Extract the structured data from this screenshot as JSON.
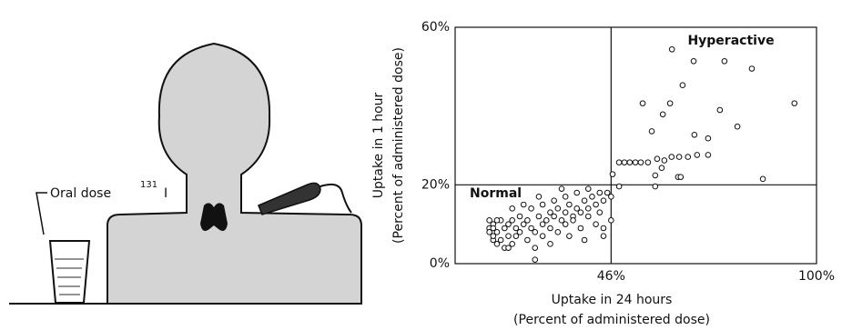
{
  "illustration": {
    "label": "Oral dose",
    "isotope_mass": "131",
    "isotope_symbol": "I"
  },
  "chart_data": {
    "type": "scatter",
    "xlabel": [
      "Uptake in 24 hours",
      "(Percent of administered dose)"
    ],
    "ylabel": [
      "Uptake in 1 hour",
      "(Percent of administered dose)"
    ],
    "annotations": [
      "Hyperactive",
      "Normal"
    ],
    "xlim": [
      5,
      100
    ],
    "ylim": [
      0,
      60
    ],
    "xticks": [
      {
        "value": 46,
        "label": "46%"
      },
      {
        "value": 100,
        "label": "100%"
      }
    ],
    "yticks": [
      {
        "value": 0,
        "label": "0%"
      },
      {
        "value": 20,
        "label": "20%"
      },
      {
        "value": 60,
        "label": "60%"
      }
    ],
    "x": [
      62,
      67.7,
      75.8,
      83,
      64.8,
      54.3,
      61.5,
      59.6,
      94.2,
      74.6,
      79.2,
      56.7,
      67.9,
      71.5,
      48.1,
      49.5,
      50.9,
      52.4,
      53.8,
      55.7,
      58.1,
      60,
      61.9,
      63.9,
      66.2,
      68.6,
      71.5,
      59.3,
      63.6,
      64.3,
      57.6,
      57.6,
      85.9,
      48.1,
      46.4,
      14,
      15,
      16,
      17,
      18,
      19,
      20,
      21,
      22,
      14,
      15,
      16,
      15,
      16,
      17,
      18,
      19,
      20,
      21,
      22,
      23,
      24,
      25,
      26,
      27,
      28,
      29,
      30,
      31,
      32,
      33,
      34,
      35,
      36,
      37,
      38,
      39,
      40,
      41,
      42,
      43,
      44,
      45,
      46,
      24,
      26,
      28,
      30,
      32,
      34,
      36,
      38,
      40,
      42,
      44,
      46,
      25,
      28,
      31,
      34,
      37,
      40,
      43,
      20,
      23,
      27,
      33,
      26,
      19,
      30,
      35,
      39,
      44,
      15,
      14
    ],
    "values": [
      54.4,
      51.4,
      51.4,
      49.5,
      45.3,
      40.7,
      40.7,
      37.9,
      40.7,
      39,
      34.8,
      33.6,
      32.7,
      31.8,
      25.7,
      25.7,
      25.7,
      25.7,
      25.7,
      25.7,
      26.6,
      26.2,
      27.1,
      27.1,
      27.1,
      27.6,
      27.6,
      24.3,
      22,
      22,
      22.4,
      19.6,
      21.5,
      19.6,
      22.7,
      9,
      10,
      8,
      11,
      9,
      10,
      11,
      9,
      12,
      8,
      6,
      5,
      7,
      11,
      6,
      4,
      7,
      5,
      7,
      8,
      10,
      11,
      9,
      8,
      12,
      10,
      11,
      13,
      12,
      14,
      11,
      13,
      15,
      12,
      14,
      13,
      16,
      14,
      17,
      15,
      13,
      16,
      18,
      17,
      6,
      4,
      7,
      9,
      8,
      10,
      11,
      9,
      12,
      10,
      9,
      11,
      14,
      15,
      16,
      17,
      18,
      19,
      18,
      14,
      15,
      17,
      19,
      1,
      4,
      5,
      7,
      6,
      7,
      9,
      11
    ]
  }
}
